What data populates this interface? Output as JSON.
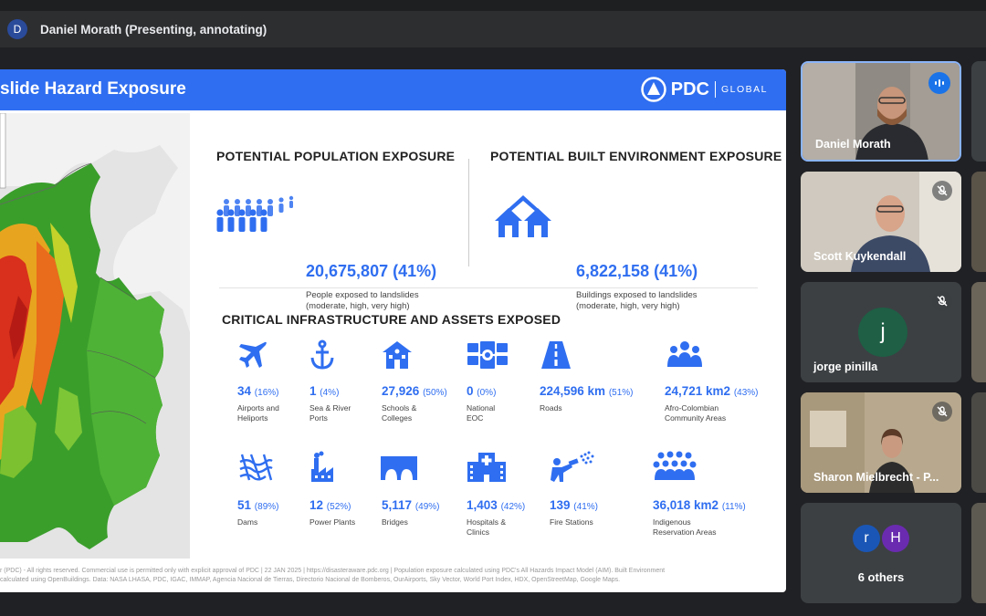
{
  "meeting": {
    "presenter_initial": "D",
    "presenter_label": "Daniel Morath (Presenting, annotating)"
  },
  "slide": {
    "title": "slide Hazard Exposure",
    "logo_text": "PDC",
    "logo_sub": "GLOBAL",
    "population": {
      "heading": "POTENTIAL POPULATION EXPOSURE",
      "value": "20,675,807 (41%)",
      "desc_line1": "People exposed to landslides",
      "desc_line2": "(moderate, high, very high)"
    },
    "built": {
      "heading": "POTENTIAL BUILT ENVIRONMENT EXPOSURE",
      "value": "6,822,158 (41%)",
      "desc_line1": "Buildings exposed to landslides",
      "desc_line2": "(moderate, high, very high)"
    },
    "infra_heading": "CRITICAL INFRASTRUCTURE AND ASSETS EXPOSED",
    "row1": [
      {
        "icon": "airplane-icon",
        "num": "34",
        "pct": "(16%)",
        "l1": "Airports and",
        "l2": "Heliports"
      },
      {
        "icon": "anchor-icon",
        "num": "1",
        "pct": "(4%)",
        "l1": "Sea & River",
        "l2": "Ports"
      },
      {
        "icon": "school-icon",
        "num": "27,926",
        "pct": "(50%)",
        "l1": "Schools &",
        "l2": "Colleges"
      },
      {
        "icon": "eoc-icon",
        "num": "0",
        "pct": "(0%)",
        "l1": "National",
        "l2": "EOC"
      },
      {
        "icon": "road-icon",
        "num": "224,596 km",
        "pct": "(51%)",
        "l1": "Roads",
        "l2": ""
      },
      {
        "icon": "community-icon",
        "num": "24,721 km2",
        "pct": "(43%)",
        "l1": "Afro-Colombian",
        "l2": "Community Areas"
      }
    ],
    "row2": [
      {
        "icon": "dam-icon",
        "num": "51",
        "pct": "(89%)",
        "l1": "Dams",
        "l2": ""
      },
      {
        "icon": "power-plant-icon",
        "num": "12",
        "pct": "(52%)",
        "l1": "Power Plants",
        "l2": ""
      },
      {
        "icon": "bridge-icon",
        "num": "5,117",
        "pct": "(49%)",
        "l1": "Bridges",
        "l2": ""
      },
      {
        "icon": "hospital-icon",
        "num": "1,403",
        "pct": "(42%)",
        "l1": "Hospitals &",
        "l2": "Clinics"
      },
      {
        "icon": "fire-station-icon",
        "num": "139",
        "pct": "(41%)",
        "l1": "Fire Stations",
        "l2": ""
      },
      {
        "icon": "indigenous-icon",
        "num": "36,018 km2",
        "pct": "(11%)",
        "l1": "Indigenous",
        "l2": "Reservation Areas"
      }
    ],
    "footer_line1": "r (PDC) - All rights reserved. Commercial use is permitted only with explicit approval of PDC  |  22 JAN 2025  |  https://disasteraware.pdc.org  |  Population exposure calculated using PDC's All Hazards Impact Model (AIM). Built Environment",
    "footer_line2": "calculated using OpenBuildings. Data: NASA LHASA, PDC, IGAC, IMMAP, Agencia Nacional de Tierras, Directorio Nacional de Bomberos, OurAirports, Sky Vector, World Port Index, HDX, OpenStreetMap, Google Maps."
  },
  "participants": [
    {
      "name": "Daniel Morath",
      "state": "speaking"
    },
    {
      "name": "Scott Kuykendall",
      "state": "muted"
    },
    {
      "name": "jorge pinilla",
      "initial": "j",
      "state": "muted"
    },
    {
      "name": "Sharon Mielbrecht - P...",
      "state": "muted"
    }
  ],
  "others": {
    "avatars": [
      "r",
      "H"
    ],
    "label": "6 others"
  },
  "colors": {
    "accent": "#2f6ef0",
    "speaking": "#1a73e8",
    "surface": "#202124"
  }
}
